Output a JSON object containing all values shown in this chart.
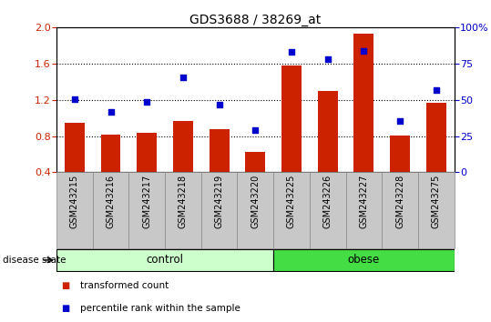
{
  "title": "GDS3688 / 38269_at",
  "categories": [
    "GSM243215",
    "GSM243216",
    "GSM243217",
    "GSM243218",
    "GSM243219",
    "GSM243220",
    "GSM243225",
    "GSM243226",
    "GSM243227",
    "GSM243228",
    "GSM243275"
  ],
  "bar_values": [
    0.95,
    0.82,
    0.84,
    0.97,
    0.88,
    0.62,
    1.58,
    1.3,
    1.93,
    0.81,
    1.17
  ],
  "scatter_values": [
    1.21,
    1.07,
    1.18,
    1.45,
    1.15,
    0.87,
    1.73,
    1.65,
    1.74,
    0.97,
    1.31
  ],
  "bar_color": "#cc2200",
  "scatter_color": "#0000cc",
  "ylim_left": [
    0.4,
    2.0
  ],
  "ylim_right": [
    0,
    100
  ],
  "yticks_left": [
    0.4,
    0.8,
    1.2,
    1.6,
    2.0
  ],
  "yticks_right": [
    0,
    25,
    50,
    75,
    100
  ],
  "ytick_labels_right": [
    "0",
    "25",
    "50",
    "75",
    "100%"
  ],
  "control_label": "control",
  "obese_label": "obese",
  "disease_state_label": "disease state",
  "legend_bar_label": "transformed count",
  "legend_scatter_label": "percentile rank within the sample",
  "n_control": 6,
  "n_obese": 5,
  "control_color": "#ccffcc",
  "obese_color": "#44dd44",
  "tick_label_area_color": "#c8c8c8",
  "dotted_lines": [
    0.8,
    1.2,
    1.6
  ],
  "bar_bottom": 0.4
}
